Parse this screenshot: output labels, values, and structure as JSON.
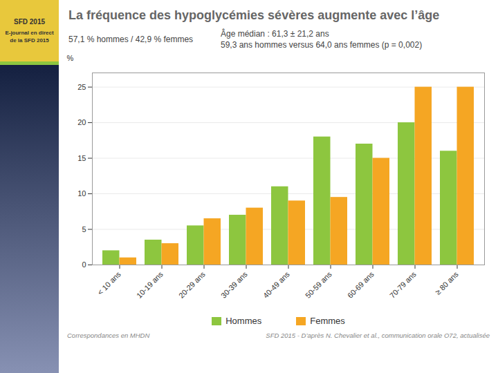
{
  "chart_data": {
    "type": "bar",
    "title": "La fréquence des hypoglycémies sévères augmente avec l’âge",
    "subtitle": [
      "57,1 % hommes / 42,9 % femmes",
      "Âge médian : 61,3 ± 21,2 ans",
      "59,3 ans hommes versus 64,0 ans femmes (p = 0,002)"
    ],
    "annotations": [
      "Correspondances en MHDN",
      "SFD 2015 - D’après N. Chevalier et al., communication orale O72, actualisée",
      "E-journal en direct\nde la SFD 2015",
      "SFD 2015"
    ],
    "categories": [
      "< 10 ans",
      "10-19 ans",
      "20-29 ans",
      "30-39 ans",
      "40-49 ans",
      "50-59 ans",
      "60-69 ans",
      "70-79 ans",
      "≥ 80 ans"
    ],
    "series": [
      {
        "name": "Hommes",
        "color": "#8dc63f",
        "values": [
          2,
          3.5,
          5.5,
          7,
          11,
          18,
          17,
          20,
          16
        ]
      },
      {
        "name": "Femmes",
        "color": "#f5a623",
        "values": [
          1,
          3,
          6.5,
          8,
          9,
          9.5,
          15,
          25,
          25
        ]
      }
    ],
    "ylabel": "%",
    "ylim": [
      0,
      27
    ],
    "yticks": [
      0,
      5,
      10,
      15,
      20,
      25
    ],
    "grid": true,
    "legend": "bottom"
  }
}
